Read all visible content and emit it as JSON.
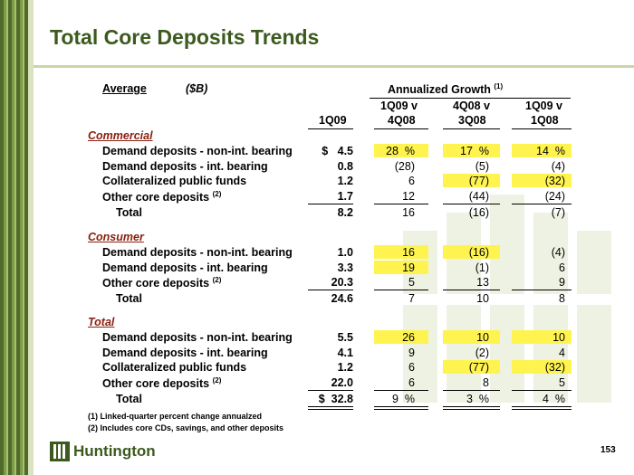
{
  "title": "Total Core Deposits Trends",
  "header": {
    "average": "Average",
    "unit": "($B)",
    "growth": "Annualized Growth",
    "growth_note": "(1)",
    "col1": "1Q09",
    "col2a": "1Q09 v",
    "col2b": "4Q08",
    "col3a": "4Q08 v",
    "col3b": "3Q08",
    "col4a": "1Q09 v",
    "col4b": "1Q08"
  },
  "sections": [
    {
      "name": "Commercial",
      "rows": [
        {
          "label": "Demand deposits - non-int. bearing",
          "v": "$   4.5",
          "g1": "28  %",
          "g2": "17  %",
          "g3": "14  %"
        },
        {
          "label": "Demand deposits - int. bearing",
          "v": "0.8",
          "g1": "(28)",
          "g2": "(5)",
          "g3": "(4)"
        },
        {
          "label": "Collateralized public funds",
          "v": "1.2",
          "g1": "6",
          "g2": "(77)",
          "g3": "(32)"
        },
        {
          "label": "Other core deposits",
          "sup": "(2)",
          "v": "1.7",
          "g1": "12",
          "g2": "(44)",
          "g3": "(24)"
        },
        {
          "label": "Total",
          "v": "8.2",
          "g1": "16",
          "g2": "(16)",
          "g3": "(7)"
        }
      ]
    },
    {
      "name": "Consumer",
      "rows": [
        {
          "label": "Demand deposits - non-int. bearing",
          "v": "1.0",
          "g1": "16",
          "g2": "(16)",
          "g3": "(4)"
        },
        {
          "label": "Demand deposits - int. bearing",
          "v": "3.3",
          "g1": "19",
          "g2": "(1)",
          "g3": "6"
        },
        {
          "label": "Other core deposits",
          "sup": "(2)",
          "v": "20.3",
          "g1": "5",
          "g2": "13",
          "g3": "9"
        },
        {
          "label": "Total",
          "v": "24.6",
          "g1": "7",
          "g2": "10",
          "g3": "8"
        }
      ]
    },
    {
      "name": "Total",
      "rows": [
        {
          "label": "Demand deposits - non-int. bearing",
          "v": "5.5",
          "g1": "26",
          "g2": "10",
          "g3": "10"
        },
        {
          "label": "Demand deposits - int. bearing",
          "v": "4.1",
          "g1": "9",
          "g2": "(2)",
          "g3": "4"
        },
        {
          "label": "Collateralized public funds",
          "v": "1.2",
          "g1": "6",
          "g2": "(77)",
          "g3": "(32)"
        },
        {
          "label": "Other core deposits",
          "sup": "(2)",
          "v": "22.0",
          "g1": "6",
          "g2": "8",
          "g3": "5"
        },
        {
          "label": "Total",
          "v": "$  32.8",
          "g1": "9  %",
          "g2": "3  %",
          "g3": "4  %"
        }
      ]
    }
  ],
  "footnotes": [
    "(1)  Linked-quarter percent change annualzed",
    "(2)  Includes core CDs, savings, and other deposits"
  ],
  "logo_text": "Huntington",
  "page_number": "153",
  "colors": {
    "accent": "#3c5a1e",
    "section": "#8a2010",
    "highlight": "#fff44f"
  }
}
